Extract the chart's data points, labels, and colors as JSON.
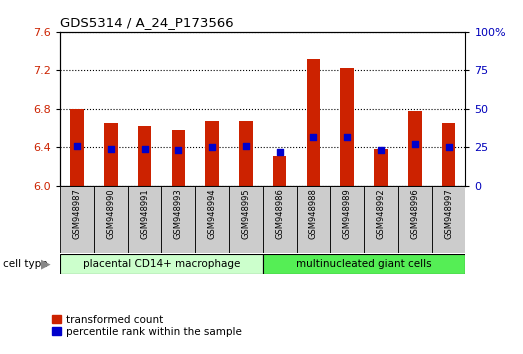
{
  "title": "GDS5314 / A_24_P173566",
  "samples": [
    "GSM948987",
    "GSM948990",
    "GSM948991",
    "GSM948993",
    "GSM948994",
    "GSM948995",
    "GSM948986",
    "GSM948988",
    "GSM948989",
    "GSM948992",
    "GSM948996",
    "GSM948997"
  ],
  "transformed_count": [
    6.8,
    6.65,
    6.62,
    6.58,
    6.67,
    6.67,
    6.31,
    7.32,
    7.22,
    6.38,
    6.78,
    6.65
  ],
  "percentile_rank": [
    26,
    24,
    24,
    23,
    25,
    26,
    22,
    32,
    32,
    23,
    27,
    25
  ],
  "group1_label": "placental CD14+ macrophage",
  "group2_label": "multinucleated giant cells",
  "group1_count": 6,
  "group2_count": 6,
  "ylim_left": [
    6.0,
    7.6
  ],
  "ylim_right": [
    0,
    100
  ],
  "yticks_left": [
    6.0,
    6.4,
    6.8,
    7.2,
    7.6
  ],
  "yticks_right": [
    0,
    25,
    50,
    75,
    100
  ],
  "bar_color": "#CC2200",
  "dot_color": "#0000CC",
  "group1_bg": "#CCFFCC",
  "group2_bg": "#55EE55",
  "sample_bg": "#CCCCCC",
  "legend_bar_label": "transformed count",
  "legend_dot_label": "percentile rank within the sample",
  "ylabel_left_color": "#CC2200",
  "ylabel_right_color": "#0000BB",
  "bar_width": 0.4,
  "fig_width": 5.23,
  "fig_height": 3.54
}
